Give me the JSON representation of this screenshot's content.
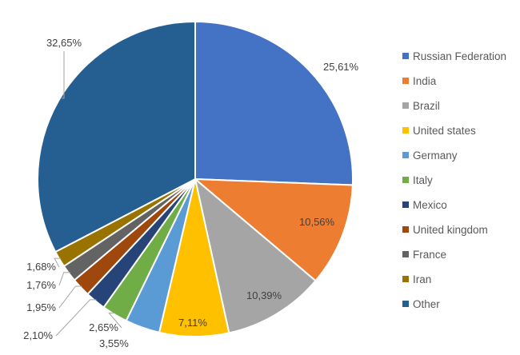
{
  "chart_data": {
    "type": "pie",
    "title": "",
    "legend_position": "right",
    "categories": [
      "Russian Federation",
      "India",
      "Brazil",
      "United states",
      "Germany",
      "Italy",
      "Mexico",
      "United kingdom",
      "France",
      "Iran",
      "Other"
    ],
    "values": [
      25.61,
      10.56,
      10.39,
      7.11,
      3.55,
      2.65,
      2.1,
      1.95,
      1.76,
      1.68,
      32.65
    ],
    "value_labels": [
      "25,61%",
      "10,56%",
      "10,39%",
      "7,11%",
      "3,55%",
      "2,65%",
      "2,10%",
      "1,95%",
      "1,76%",
      "1,68%",
      "32,65%"
    ],
    "colors": [
      "#4472C4",
      "#ED7D31",
      "#A5A5A5",
      "#FFC000",
      "#5B9BD5",
      "#70AD47",
      "#264478",
      "#9E480E",
      "#636363",
      "#997300",
      "#255E91"
    ]
  }
}
